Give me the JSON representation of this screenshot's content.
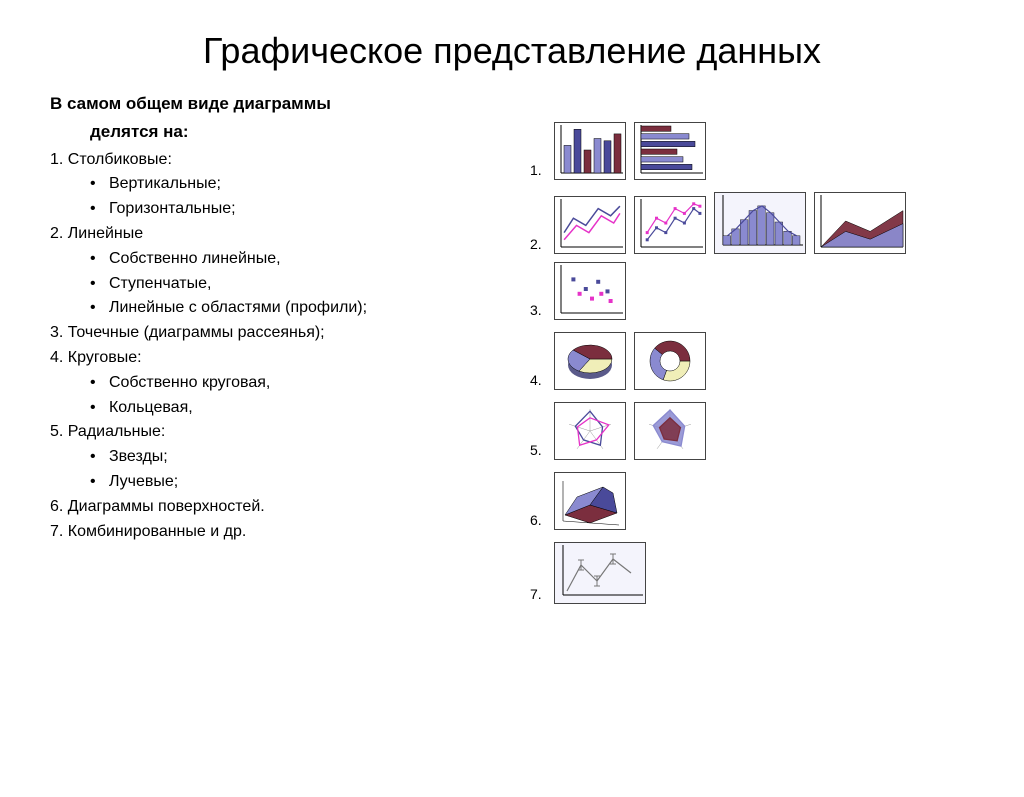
{
  "title": "Графическое представление данных",
  "header_line1": "В самом общем виде диаграммы",
  "header_line2": "делятся на:",
  "items": {
    "i1": "1. Столбиковые:",
    "i1a": "Вертикальные;",
    "i1b": "Горизонтальные;",
    "i2": "2. Линейные",
    "i2a": "Собственно линейные,",
    "i2b": "Ступенчатые,",
    "i2c": "Линейные с областями (профили);",
    "i3": "3. Точечные (диаграммы рассеянья);",
    "i4": "4. Круговые:",
    "i4a": "Собственно круговая,",
    "i4b": "Кольцевая,",
    "i5": "5. Радиальные:",
    "i5a": "Звезды;",
    "i5b": "Лучевые;",
    "i6": "6. Диаграммы поверхностей.",
    "i7": "7. Комбинированные и др."
  },
  "row_labels": {
    "r1": "1.",
    "r2": "2.",
    "r3": "3.",
    "r4": "4.",
    "r5": "5.",
    "r6": "6.",
    "r7": "7."
  },
  "colors": {
    "purple": "#8a8ad0",
    "darkpurple": "#4a4a9a",
    "maroon": "#7b2e3e",
    "cream": "#f0eeb8",
    "magenta": "#e632c8",
    "navy": "#3838aa",
    "lightbg": "#f4f4fc"
  },
  "thumbs": {
    "vbar": {
      "type": "vbar",
      "values": [
        0.6,
        0.95,
        0.5,
        0.75,
        0.7,
        0.85
      ],
      "colors": [
        "#8a8ad0",
        "#4a4a9a",
        "#7b2e3e",
        "#8a8ad0",
        "#4a4a9a",
        "#7b2e3e"
      ]
    },
    "hbar": {
      "type": "hbar",
      "values": [
        0.5,
        0.8,
        0.9,
        0.6,
        0.7,
        0.85
      ],
      "colors": [
        "#7b2e3e",
        "#8a8ad0",
        "#4a4a9a",
        "#7b2e3e",
        "#8a8ad0",
        "#4a4a9a"
      ]
    },
    "line1": {
      "type": "line",
      "series": [
        {
          "color": "#4a4a9a",
          "pts": [
            [
              0.05,
              0.7
            ],
            [
              0.2,
              0.4
            ],
            [
              0.4,
              0.55
            ],
            [
              0.6,
              0.2
            ],
            [
              0.8,
              0.35
            ],
            [
              0.95,
              0.15
            ]
          ]
        },
        {
          "color": "#e632c8",
          "pts": [
            [
              0.05,
              0.85
            ],
            [
              0.25,
              0.55
            ],
            [
              0.45,
              0.7
            ],
            [
              0.65,
              0.35
            ],
            [
              0.85,
              0.5
            ],
            [
              0.95,
              0.3
            ]
          ]
        }
      ]
    },
    "line2": {
      "type": "linemarkers",
      "series": [
        {
          "color": "#4a4a9a",
          "pts": [
            [
              0.1,
              0.85
            ],
            [
              0.25,
              0.6
            ],
            [
              0.4,
              0.7
            ],
            [
              0.55,
              0.4
            ],
            [
              0.7,
              0.5
            ],
            [
              0.85,
              0.2
            ],
            [
              0.95,
              0.3
            ]
          ]
        },
        {
          "color": "#e632c8",
          "pts": [
            [
              0.1,
              0.7
            ],
            [
              0.25,
              0.4
            ],
            [
              0.4,
              0.5
            ],
            [
              0.55,
              0.2
            ],
            [
              0.7,
              0.3
            ],
            [
              0.85,
              0.1
            ],
            [
              0.95,
              0.15
            ]
          ]
        }
      ]
    },
    "histo": {
      "type": "histo",
      "values": [
        0.2,
        0.35,
        0.55,
        0.75,
        0.85,
        0.7,
        0.5,
        0.3,
        0.2
      ],
      "color": "#8a8ad0",
      "bg": "#f4f4fc",
      "line": "#4a4a9a"
    },
    "area": {
      "type": "area",
      "series": [
        {
          "color": "#7b2e3e",
          "pts": [
            [
              0,
              1
            ],
            [
              0.3,
              0.5
            ],
            [
              0.6,
              0.7
            ],
            [
              1,
              0.3
            ],
            [
              1,
              1
            ]
          ]
        },
        {
          "color": "#8a8ad0",
          "pts": [
            [
              0,
              1
            ],
            [
              0.3,
              0.7
            ],
            [
              0.6,
              0.85
            ],
            [
              1,
              0.55
            ],
            [
              1,
              1
            ]
          ]
        }
      ]
    },
    "scatter": {
      "type": "scatter",
      "series": [
        {
          "color": "#4a4a9a",
          "pts": [
            [
              0.2,
              0.3
            ],
            [
              0.4,
              0.5
            ],
            [
              0.6,
              0.35
            ],
            [
              0.75,
              0.55
            ]
          ]
        },
        {
          "color": "#e632c8",
          "pts": [
            [
              0.3,
              0.6
            ],
            [
              0.5,
              0.7
            ],
            [
              0.65,
              0.6
            ],
            [
              0.8,
              0.75
            ]
          ]
        }
      ]
    },
    "pie": {
      "type": "pie3d",
      "slices": [
        {
          "color": "#f0eeb8",
          "a": 120
        },
        {
          "color": "#8a8ad0",
          "a": 100
        },
        {
          "color": "#7b2e3e",
          "a": 140
        }
      ]
    },
    "donut": {
      "type": "donut",
      "slices": [
        {
          "color": "#f0eeb8",
          "a": 110
        },
        {
          "color": "#8a8ad0",
          "a": 110
        },
        {
          "color": "#7b2e3e",
          "a": 140
        }
      ]
    },
    "radar1": {
      "type": "radar",
      "series": [
        {
          "color": "#4a4a9a",
          "vals": [
            0.9,
            0.6,
            0.8,
            0.5,
            0.7
          ]
        },
        {
          "color": "#e632c8",
          "vals": [
            0.6,
            0.9,
            0.5,
            0.8,
            0.6
          ]
        }
      ]
    },
    "radar2": {
      "type": "radarfill",
      "series": [
        {
          "color": "#8a8ad0",
          "vals": [
            0.95,
            0.7,
            0.85,
            0.6,
            0.8
          ]
        },
        {
          "color": "#7b2e3e",
          "vals": [
            0.6,
            0.5,
            0.55,
            0.45,
            0.5
          ]
        }
      ]
    },
    "surface": {
      "type": "surface"
    },
    "combo": {
      "type": "combo"
    }
  }
}
